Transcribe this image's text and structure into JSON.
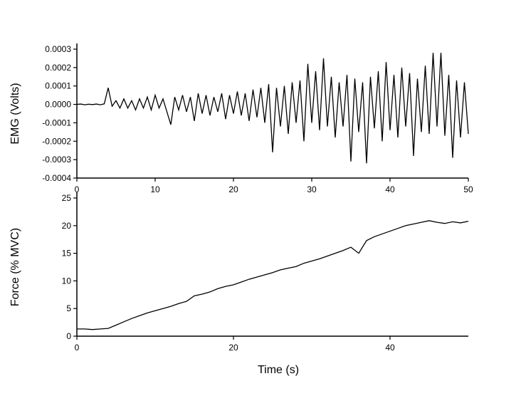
{
  "chart_data": [
    {
      "type": "line",
      "ylabel": "EMG (Volts)",
      "color": "#000000",
      "xlim": [
        0,
        50
      ],
      "xticks": [
        0,
        10,
        20,
        30,
        40,
        50
      ],
      "ylim": [
        -0.0004,
        0.0003
      ],
      "yticks": [
        -0.0004,
        -0.0003,
        -0.0002,
        -0.0001,
        {
          "value": 0,
          "label": "0.0000"
        },
        0.0001,
        0.0002,
        0.0003
      ],
      "x": [
        0,
        0.5,
        1,
        1.5,
        2,
        2.5,
        3,
        3.5,
        4,
        4.5,
        5,
        5.5,
        6,
        6.5,
        7,
        7.5,
        8,
        8.5,
        9,
        9.5,
        10,
        10.5,
        11,
        11.5,
        12,
        12.5,
        13,
        13.5,
        14,
        14.5,
        15,
        15.5,
        16,
        16.5,
        17,
        17.5,
        18,
        18.5,
        19,
        19.5,
        20,
        20.5,
        21,
        21.5,
        22,
        22.5,
        23,
        23.5,
        24,
        24.5,
        25,
        25.5,
        26,
        26.5,
        27,
        27.5,
        28,
        28.5,
        29,
        29.5,
        30,
        30.5,
        31,
        31.5,
        32,
        32.5,
        33,
        33.5,
        34,
        34.5,
        35,
        35.5,
        36,
        36.5,
        37,
        37.5,
        38,
        38.5,
        39,
        39.5,
        40,
        40.5,
        41,
        41.5,
        42,
        42.5,
        43,
        43.5,
        44,
        44.5,
        45,
        45.5,
        46,
        46.5,
        47,
        47.5,
        48,
        48.5,
        49,
        49.5,
        50
      ],
      "values": [
        0,
        2e-06,
        -2e-06,
        1e-06,
        -1e-06,
        2e-06,
        -2e-06,
        3e-06,
        9e-05,
        -1e-05,
        2e-05,
        -2e-05,
        3e-05,
        -2e-05,
        2e-05,
        -3e-05,
        3e-05,
        -2e-05,
        4e-05,
        -3e-05,
        5e-05,
        -2e-05,
        3e-05,
        -4e-05,
        -0.00011,
        4e-05,
        -3e-05,
        5e-05,
        -4e-05,
        4e-05,
        -9e-05,
        6e-05,
        -5e-05,
        5e-05,
        -6e-05,
        4e-05,
        -4e-05,
        6e-05,
        -8e-05,
        5e-05,
        -5e-05,
        7e-05,
        -6e-05,
        6e-05,
        -9e-05,
        8e-05,
        -7e-05,
        9e-05,
        -0.0001,
        0.00011,
        -0.00026,
        9e-05,
        -0.00012,
        0.0001,
        -0.00016,
        0.00012,
        -0.0001,
        0.00013,
        -0.0002,
        0.00022,
        -0.0001,
        0.00018,
        -0.00014,
        0.00025,
        -0.00012,
        0.00015,
        -0.00018,
        0.00012,
        -0.00012,
        0.00016,
        -0.00031,
        0.00014,
        -0.00015,
        0.00012,
        -0.00032,
        0.00015,
        -0.00013,
        0.00018,
        -0.0002,
        0.00023,
        -0.00014,
        0.00016,
        -0.00018,
        0.0002,
        -0.00012,
        0.00017,
        -0.00028,
        0.00014,
        -0.00015,
        0.00021,
        -0.00016,
        0.00028,
        -0.00012,
        0.00028,
        -0.00017,
        0.00016,
        -0.00029,
        0.00013,
        -0.00018,
        0.00012,
        -0.00016
      ]
    },
    {
      "type": "line",
      "ylabel": "Force (% MVC)",
      "xlabel": "Time (s)",
      "color": "#000000",
      "xlim": [
        0,
        50
      ],
      "xticks": [
        0,
        20,
        40
      ],
      "ylim": [
        0,
        25
      ],
      "yticks": [
        0,
        5,
        10,
        15,
        20,
        25
      ],
      "x": [
        0,
        1,
        2,
        3,
        4,
        5,
        6,
        7,
        8,
        9,
        10,
        11,
        12,
        13,
        14,
        15,
        16,
        17,
        18,
        19,
        20,
        21,
        22,
        23,
        24,
        25,
        26,
        27,
        28,
        29,
        30,
        31,
        32,
        33,
        34,
        35,
        36,
        37,
        38,
        39,
        40,
        41,
        42,
        43,
        44,
        45,
        46,
        47,
        48,
        49,
        50
      ],
      "values": [
        1.3,
        1.3,
        1.2,
        1.3,
        1.4,
        2.0,
        2.6,
        3.2,
        3.7,
        4.2,
        4.6,
        5.0,
        5.4,
        5.9,
        6.3,
        7.3,
        7.6,
        8.0,
        8.6,
        9.0,
        9.3,
        9.8,
        10.3,
        10.7,
        11.1,
        11.5,
        12.0,
        12.3,
        12.6,
        13.2,
        13.6,
        14.0,
        14.5,
        15.0,
        15.5,
        16.1,
        15.0,
        17.3,
        18.0,
        18.5,
        19.0,
        19.5,
        20.0,
        20.3,
        20.6,
        20.9,
        20.6,
        20.4,
        20.7,
        20.5,
        20.8
      ]
    }
  ]
}
